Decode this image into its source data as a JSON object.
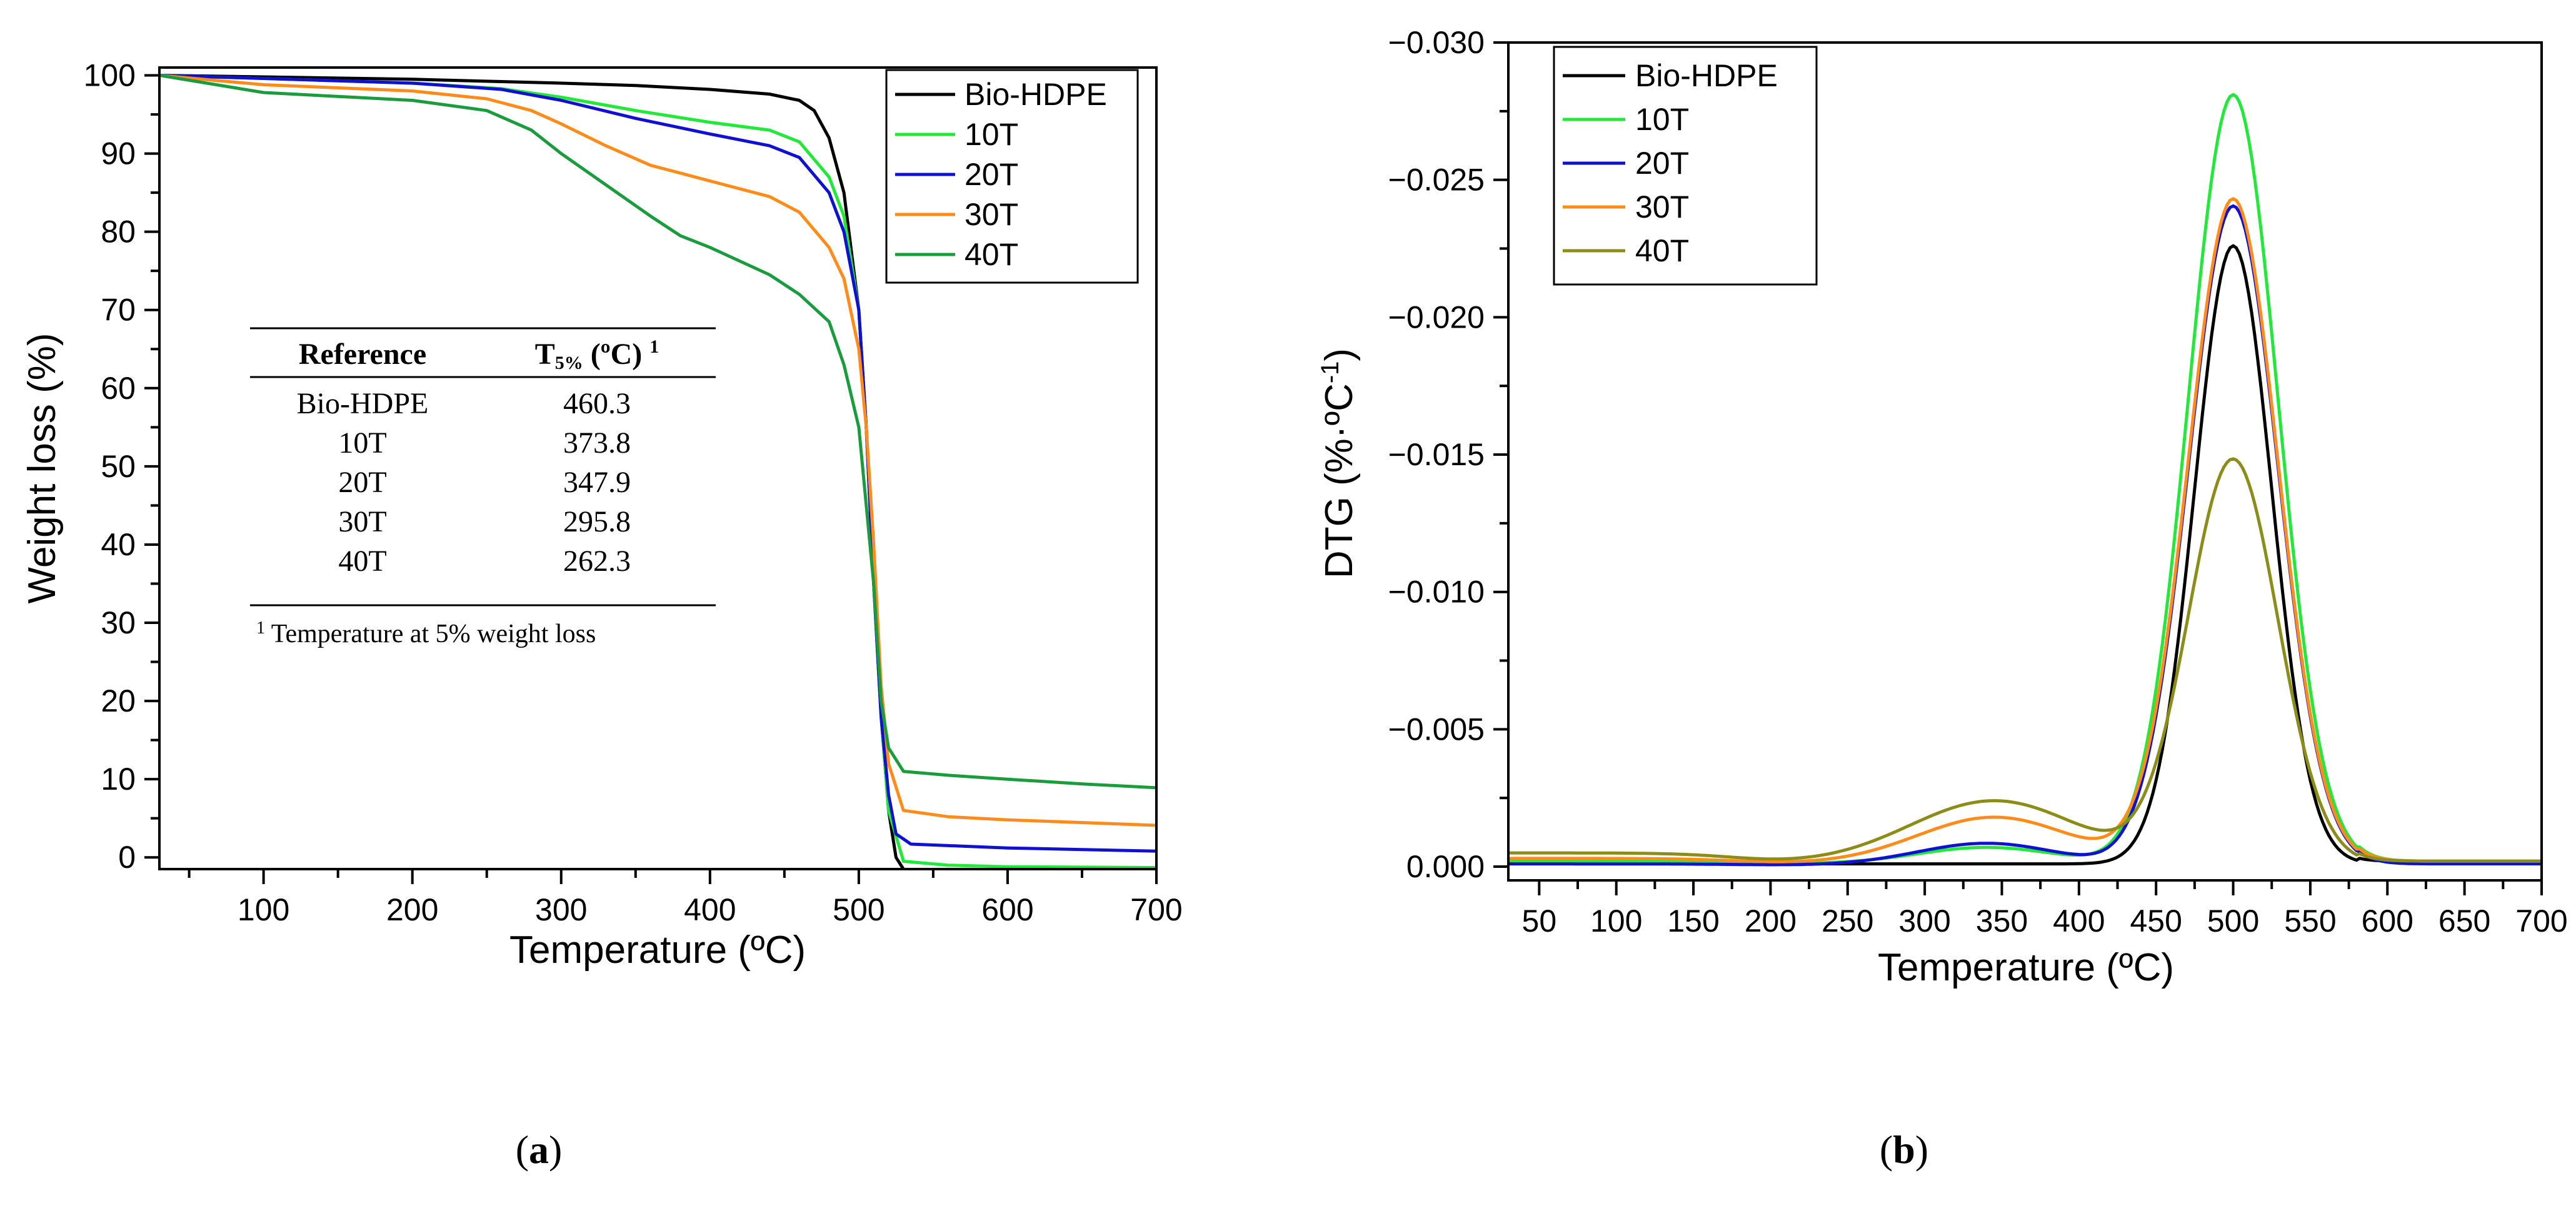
{
  "chart_data": [
    {
      "type": "line",
      "panel": "a",
      "panel_label": "(a)",
      "panel_letter": "a",
      "xlabel": "Temperature (ºC)",
      "ylabel": "Weight loss (%)",
      "xlim": [
        30,
        700
      ],
      "ylim": [
        -1.5,
        101
      ],
      "xticks": [
        100,
        200,
        300,
        400,
        500,
        600,
        700
      ],
      "yticks": [
        0,
        10,
        20,
        30,
        40,
        50,
        60,
        70,
        80,
        90,
        100
      ],
      "grid": false,
      "legend_position": "top-right",
      "series": [
        {
          "name": "Bio-HDPE",
          "color": "#000000",
          "points": [
            [
              30,
              100
            ],
            [
              100,
              99.8
            ],
            [
              200,
              99.5
            ],
            [
              300,
              99.0
            ],
            [
              350,
              98.7
            ],
            [
              400,
              98.2
            ],
            [
              440,
              97.6
            ],
            [
              460,
              96.8
            ],
            [
              470,
              95.5
            ],
            [
              480,
              92
            ],
            [
              490,
              85
            ],
            [
              500,
              70
            ],
            [
              505,
              55
            ],
            [
              510,
              35
            ],
            [
              515,
              18
            ],
            [
              520,
              6
            ],
            [
              525,
              0
            ],
            [
              530,
              -1.5
            ]
          ]
        },
        {
          "name": "10T",
          "color": "#22e83a",
          "points": [
            [
              30,
              100
            ],
            [
              100,
              99.6
            ],
            [
              200,
              99.0
            ],
            [
              260,
              98.3
            ],
            [
              300,
              97.2
            ],
            [
              350,
              95.5
            ],
            [
              400,
              94.0
            ],
            [
              440,
              93.0
            ],
            [
              460,
              91.5
            ],
            [
              480,
              87
            ],
            [
              490,
              82
            ],
            [
              500,
              70
            ],
            [
              505,
              55
            ],
            [
              510,
              35
            ],
            [
              515,
              18
            ],
            [
              520,
              6
            ],
            [
              530,
              -0.5
            ],
            [
              560,
              -1
            ],
            [
              600,
              -1.2
            ],
            [
              700,
              -1.3
            ]
          ]
        },
        {
          "name": "20T",
          "color": "#1010d0",
          "points": [
            [
              30,
              100
            ],
            [
              100,
              99.6
            ],
            [
              200,
              99.0
            ],
            [
              260,
              98.2
            ],
            [
              300,
              96.8
            ],
            [
              350,
              94.5
            ],
            [
              400,
              92.5
            ],
            [
              440,
              91.0
            ],
            [
              460,
              89.5
            ],
            [
              480,
              85
            ],
            [
              490,
              80
            ],
            [
              500,
              70
            ],
            [
              505,
              55
            ],
            [
              510,
              35
            ],
            [
              515,
              18
            ],
            [
              520,
              8
            ],
            [
              525,
              3
            ],
            [
              535,
              1.7
            ],
            [
              600,
              1.2
            ],
            [
              700,
              0.8
            ]
          ]
        },
        {
          "name": "30T",
          "color": "#ff8c1a",
          "points": [
            [
              30,
              100
            ],
            [
              100,
              98.8
            ],
            [
              200,
              98.0
            ],
            [
              250,
              97.0
            ],
            [
              280,
              95.5
            ],
            [
              300,
              93.8
            ],
            [
              330,
              91.0
            ],
            [
              360,
              88.5
            ],
            [
              380,
              87.5
            ],
            [
              400,
              86.5
            ],
            [
              440,
              84.5
            ],
            [
              460,
              82.5
            ],
            [
              480,
              78
            ],
            [
              490,
              74
            ],
            [
              500,
              65
            ],
            [
              505,
              55
            ],
            [
              510,
              40
            ],
            [
              515,
              22
            ],
            [
              520,
              12
            ],
            [
              530,
              6
            ],
            [
              560,
              5.2
            ],
            [
              600,
              4.8
            ],
            [
              700,
              4.1
            ]
          ]
        },
        {
          "name": "40T",
          "color": "#1a9c3c",
          "points": [
            [
              30,
              100
            ],
            [
              100,
              97.8
            ],
            [
              150,
              97.3
            ],
            [
              200,
              96.8
            ],
            [
              250,
              95.5
            ],
            [
              280,
              93.0
            ],
            [
              300,
              90.0
            ],
            [
              330,
              86.0
            ],
            [
              360,
              82.0
            ],
            [
              380,
              79.5
            ],
            [
              400,
              78.0
            ],
            [
              440,
              74.5
            ],
            [
              460,
              72.0
            ],
            [
              480,
              68.5
            ],
            [
              490,
              63
            ],
            [
              500,
              55
            ],
            [
              505,
              45
            ],
            [
              510,
              35
            ],
            [
              515,
              20
            ],
            [
              520,
              14
            ],
            [
              530,
              11
            ],
            [
              560,
              10.5
            ],
            [
              600,
              10
            ],
            [
              650,
              9.4
            ],
            [
              700,
              8.9
            ]
          ]
        }
      ],
      "inset_table": {
        "headers": [
          "Reference",
          "T",
          "5%",
          " (ºC) ",
          "1"
        ],
        "rows": [
          [
            "Bio-HDPE",
            "460.3"
          ],
          [
            "10T",
            "373.8"
          ],
          [
            "20T",
            "347.9"
          ],
          [
            "30T",
            "295.8"
          ],
          [
            "40T",
            "262.3"
          ]
        ],
        "footnote_mark": "1",
        "footnote": " Temperature at 5% weight loss"
      }
    },
    {
      "type": "line",
      "panel": "b",
      "panel_label": "(b)",
      "panel_letter": "b",
      "xlabel": "Temperature (ºC)",
      "ylabel_prefix": "DTG (%·ºC",
      "ylabel_sup": "-1",
      "ylabel_suffix": ")",
      "xlim": [
        30,
        700
      ],
      "ylim": [
        0.0005,
        -0.03
      ],
      "xticks": [
        50,
        100,
        150,
        200,
        250,
        300,
        350,
        400,
        450,
        500,
        550,
        600,
        650,
        700
      ],
      "yticks": [
        0.0,
        -0.005,
        -0.01,
        -0.015,
        -0.02,
        -0.025,
        -0.03
      ],
      "ytick_labels": [
        "0.000",
        "-0.005",
        "-0.010",
        "-0.015",
        "-0.020",
        "-0.025",
        "-0.030"
      ],
      "grid": false,
      "legend_position": "top-left",
      "series": [
        {
          "name": "Bio-HDPE",
          "color": "#000000",
          "base": -0.0001,
          "bumps": [
            [
              500,
              25,
              -0.0225,
              1
            ]
          ],
          "tail": -0.0002
        },
        {
          "name": "10T",
          "color": "#22e83a",
          "base": -0.0002,
          "bumps": [
            [
              340,
              45,
              -0.0006,
              1
            ],
            [
              500,
              29,
              -0.028,
              1
            ]
          ],
          "tail": -0.0002
        },
        {
          "name": "20T",
          "color": "#1010d0",
          "base": -0.0001,
          "bumps": [
            [
              340,
              45,
              -0.0008,
              1
            ],
            [
              500,
              29,
              -0.024,
              1
            ]
          ],
          "tail": -0.0001
        },
        {
          "name": "30T",
          "color": "#ff8c1a",
          "base": -0.0003,
          "bumps": [
            [
              345,
              50,
              -0.0017,
              1
            ],
            [
              500,
              29,
              -0.0242,
              1
            ]
          ],
          "tail": -0.0002
        },
        {
          "name": "40T",
          "color": "#8c8c18",
          "base": -0.0005,
          "bumps": [
            [
              345,
              55,
              -0.0023,
              1
            ],
            [
              500,
              29,
              -0.0147,
              1
            ]
          ],
          "tail": -0.0002
        }
      ]
    }
  ]
}
